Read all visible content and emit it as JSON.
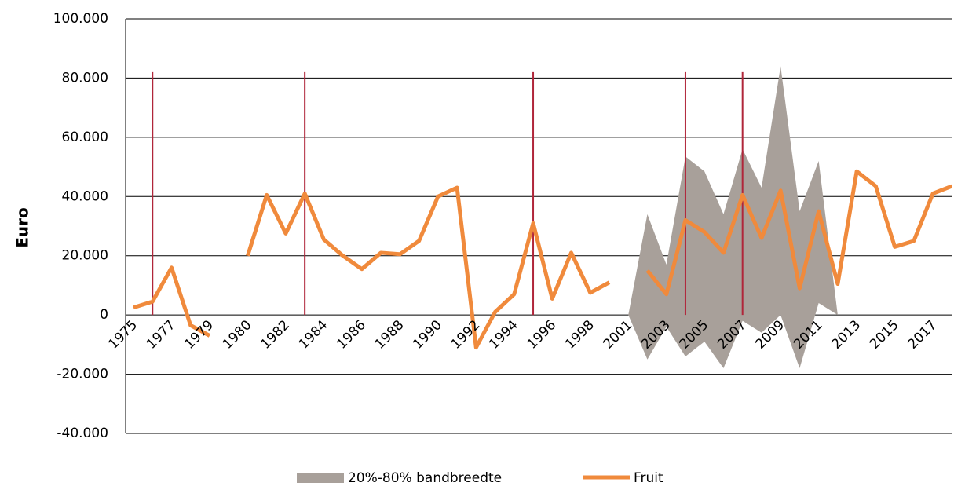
{
  "chart_data": {
    "type": "line",
    "y_label": "Euro",
    "categories": [
      "1975",
      null,
      "1977",
      null,
      "1979",
      null,
      "1980",
      null,
      "1982",
      null,
      "1984",
      null,
      "1986",
      null,
      "1988",
      null,
      "1990",
      null,
      "1992",
      null,
      "1994",
      null,
      "1996",
      null,
      "1998",
      null,
      "2001",
      null,
      "2003",
      null,
      "2005",
      null,
      "2007",
      null,
      "2009",
      null,
      "2011",
      null,
      "2013",
      null,
      "2015",
      null,
      "2017",
      null
    ],
    "series": [
      {
        "name": "20%-80% bandbreedte",
        "type": "band",
        "color": "#a8a09a",
        "low": [
          null,
          null,
          null,
          null,
          null,
          null,
          null,
          null,
          null,
          null,
          null,
          null,
          null,
          null,
          null,
          null,
          null,
          null,
          null,
          null,
          null,
          null,
          null,
          null,
          null,
          null,
          0,
          -15000,
          -4000,
          -14000,
          -9000,
          -18000,
          -2000,
          -6000,
          0,
          -18000,
          4000,
          0,
          null,
          null,
          null,
          null,
          null,
          null
        ],
        "high": [
          null,
          null,
          null,
          null,
          null,
          null,
          null,
          null,
          null,
          null,
          null,
          null,
          null,
          null,
          null,
          null,
          null,
          null,
          null,
          null,
          null,
          null,
          null,
          null,
          null,
          null,
          0,
          34000,
          17000,
          53500,
          48500,
          34000,
          56000,
          43000,
          84000,
          35000,
          52000,
          0,
          null,
          null,
          null,
          null,
          null,
          null
        ]
      },
      {
        "name": "Fruit",
        "type": "line",
        "color": "#f08a3c",
        "values": [
          2500,
          4500,
          16000,
          -3500,
          -7000,
          null,
          20000,
          40500,
          27500,
          41000,
          25500,
          20000,
          15500,
          21000,
          20500,
          25000,
          40000,
          43000,
          -11000,
          1000,
          7000,
          31000,
          5500,
          21000,
          7500,
          11000,
          null,
          15000,
          7000,
          32000,
          28000,
          21000,
          40500,
          26000,
          42000,
          9000,
          35000,
          10500,
          48500,
          43500,
          23000,
          25000,
          41000,
          43500
        ]
      }
    ],
    "vlines": {
      "color": "#b0263a",
      "at": [
        1,
        9,
        21,
        29,
        32
      ],
      "from": 0,
      "to": 82000
    },
    "ylim": [
      -40000,
      100000
    ],
    "yticks": [
      {
        "value": -40000,
        "label": "-40.000"
      },
      {
        "value": -20000,
        "label": "-20.000"
      },
      0,
      {
        "value": 20000,
        "label": "20.000"
      },
      {
        "value": 40000,
        "label": "40.000"
      },
      {
        "value": 60000,
        "label": "60.000"
      },
      {
        "value": 80000,
        "label": "80.000"
      },
      {
        "value": 100000,
        "label": "100.000"
      }
    ],
    "grid": true,
    "legend": "bottom"
  }
}
